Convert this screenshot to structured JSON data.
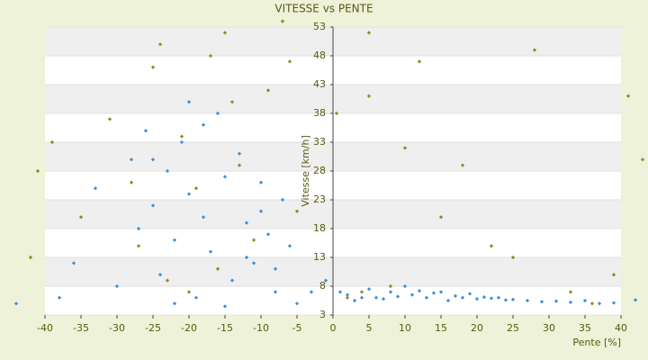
{
  "chart_data": {
    "type": "scatter",
    "title": "VITESSE vs PENTE",
    "x_label": "Pente [%]",
    "y_label": "Vitesse [km/h]",
    "xlim": [
      -40,
      40
    ],
    "ylim": [
      3,
      53
    ],
    "xticks": [
      -40,
      -35,
      -30,
      -25,
      -20,
      -15,
      -10,
      -5,
      0,
      5,
      10,
      15,
      20,
      25,
      30,
      35,
      40
    ],
    "yticks": [
      3,
      8,
      13,
      18,
      23,
      28,
      33,
      38,
      43,
      48,
      53
    ],
    "grid": true,
    "series": [
      {
        "color": "#3d8fd9",
        "x": [
          -38,
          -36,
          -33,
          -30,
          -28,
          -27,
          -26,
          -25,
          -24,
          -23,
          -22,
          -21,
          -20,
          -19,
          -18,
          -17,
          -16,
          -15,
          -14,
          -13,
          -12,
          -11,
          -10,
          -9,
          -8,
          -7,
          -6,
          -5,
          -22,
          -18,
          -15,
          -12,
          -25,
          -20,
          -10,
          -8,
          -3,
          -1,
          1,
          2,
          3,
          4,
          5,
          6,
          7,
          8,
          9,
          10,
          11,
          12,
          13,
          14,
          15,
          16,
          17,
          18,
          19,
          20,
          21,
          22,
          23,
          24,
          25,
          27,
          29,
          31,
          33,
          35,
          37,
          39,
          42,
          -44
        ],
        "values": [
          6,
          12,
          25,
          8,
          30,
          18,
          35,
          22,
          10,
          28,
          16,
          33,
          24,
          6,
          20,
          14,
          38,
          27,
          9,
          31,
          19,
          12,
          26,
          17,
          7,
          23,
          15,
          5,
          5,
          36,
          4.5,
          13,
          30,
          40,
          21,
          11,
          7,
          9,
          7,
          6.5,
          5.5,
          6,
          7.5,
          6,
          5.8,
          7,
          6.2,
          8,
          6.5,
          7.2,
          6,
          6.8,
          7,
          5.5,
          6.3,
          6,
          6.7,
          5.8,
          6.1,
          5.9,
          6,
          5.6,
          5.7,
          5.5,
          5.3,
          5.4,
          5.2,
          5.5,
          5,
          5.1,
          5.6,
          5
        ]
      },
      {
        "color": "#8c8c1e",
        "x": [
          -41,
          -39,
          -35,
          -31,
          -27,
          -25,
          -23,
          -21,
          -19,
          -17,
          -15,
          -13,
          -11,
          -9,
          -7,
          -5,
          -24,
          -16,
          -6,
          -14,
          -28,
          -20,
          0.5,
          2,
          4,
          5,
          5,
          10,
          12,
          15,
          18,
          22,
          25,
          28,
          33,
          36,
          39,
          41,
          43,
          8,
          -42
        ],
        "values": [
          28,
          33,
          20,
          37,
          15,
          46,
          9,
          34,
          25,
          48,
          52,
          29,
          16,
          42,
          54,
          21,
          50,
          11,
          47,
          40,
          26,
          7,
          38,
          6,
          7,
          52,
          41,
          32,
          47,
          20,
          29,
          15,
          13,
          49,
          7,
          5,
          10,
          41,
          30,
          8,
          13
        ]
      }
    ]
  }
}
